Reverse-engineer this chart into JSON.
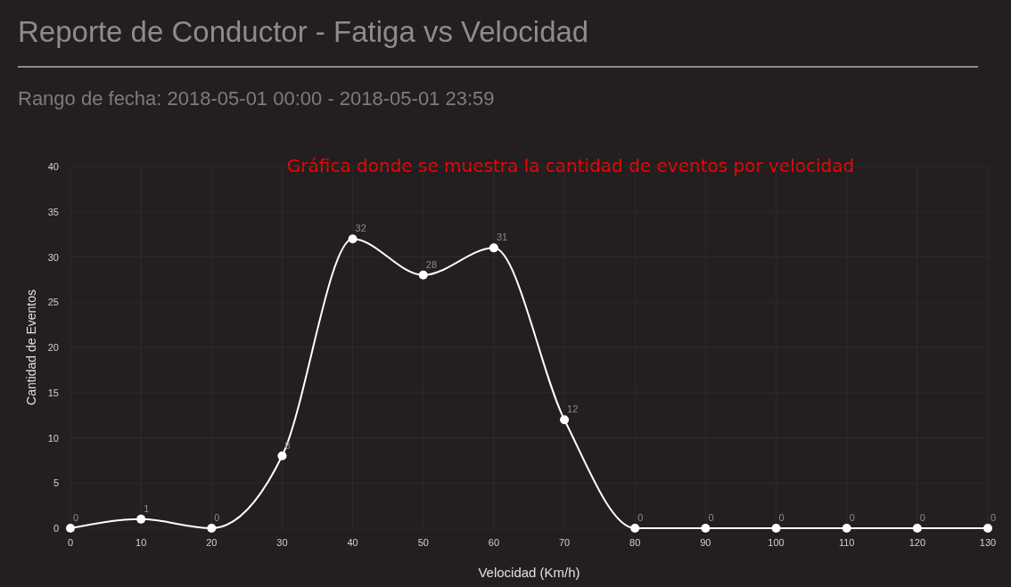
{
  "chart_data": {
    "type": "line",
    "title": "Reporte de Conductor - Fatiga vs Velocidad",
    "subtitle": "Rango de fecha: 2018-05-01 00:00 - 2018-05-01 23:59",
    "xlabel": "Velocidad (Km/h)",
    "ylabel": "Cantidad de Eventos",
    "annotations": [
      "Gráfica donde se muestra la cantidad de eventos por velocidad"
    ],
    "x": [
      0,
      10,
      20,
      30,
      40,
      50,
      60,
      70,
      80,
      90,
      100,
      110,
      120,
      130
    ],
    "series": [
      {
        "color": "#ffffff",
        "values": [
          0,
          1,
          0,
          8,
          32,
          28,
          31,
          12,
          0,
          0,
          0,
          0,
          0,
          0
        ]
      }
    ],
    "xlim": [
      0,
      130
    ],
    "xticks": [
      0,
      10,
      20,
      30,
      40,
      50,
      60,
      70,
      80,
      90,
      100,
      110,
      120,
      130
    ],
    "ylim": [
      0,
      40
    ],
    "yticks": [
      0,
      5,
      10,
      15,
      20,
      25,
      30,
      35,
      40
    ],
    "grid": true,
    "marker": "circle",
    "data_labels": true
  }
}
